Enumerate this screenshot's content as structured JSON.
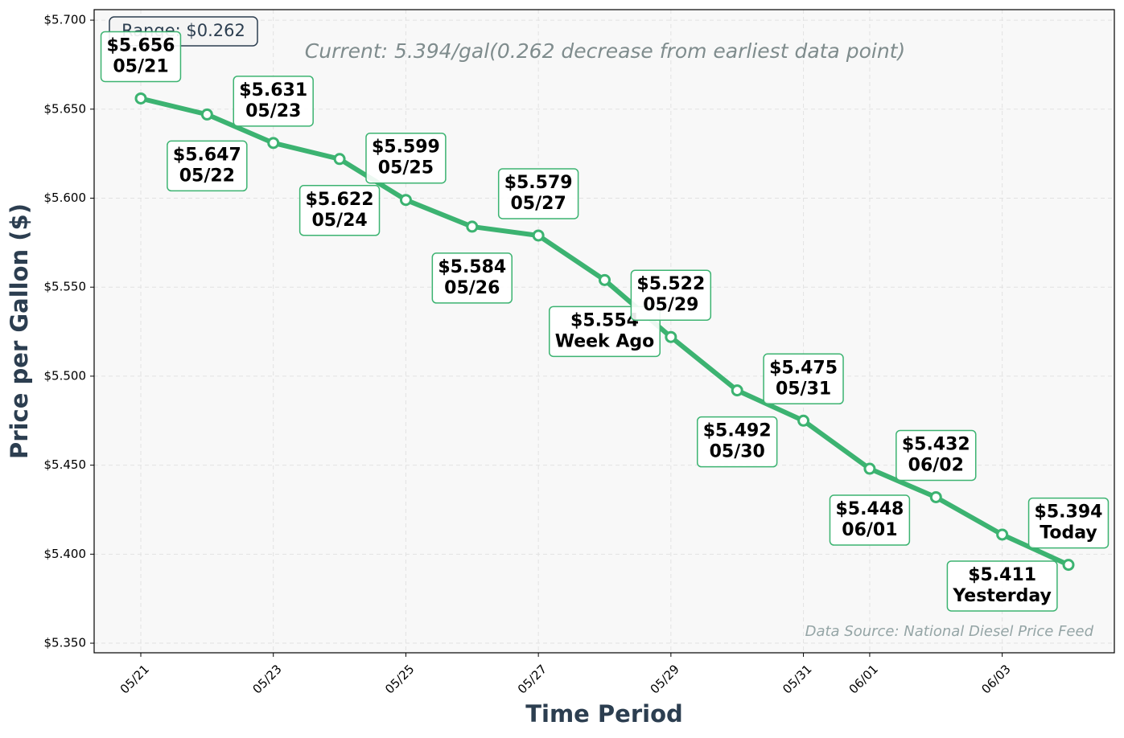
{
  "chart_data": {
    "type": "line",
    "title": "Current: 5.394/gal(0.262 decrease from earliest data point)",
    "annotations": [
      "Range: $0.262",
      "Data Source: National Diesel Price Feed"
    ],
    "x_label": "Time Period",
    "y_label": "Price per Gallon ($)",
    "categories": [
      "05/21",
      null,
      "05/23",
      null,
      "05/25",
      null,
      "05/27",
      null,
      "05/29",
      null,
      "05/31",
      "06/01",
      null,
      "06/03",
      null
    ],
    "values": [
      5.656,
      5.647,
      5.631,
      5.622,
      5.599,
      5.584,
      5.579,
      5.554,
      5.522,
      5.492,
      5.475,
      5.448,
      5.432,
      5.411,
      5.394
    ],
    "value_labels": [
      "$5.656",
      "$5.647",
      "$5.631",
      "$5.622",
      "$5.599",
      "$5.584",
      "$5.579",
      "$5.554",
      "$5.522",
      "$5.492",
      "$5.475",
      "$5.448",
      "$5.432",
      "$5.411",
      "$5.394"
    ],
    "point_labels": [
      "05/21",
      "05/22",
      "05/23",
      "05/24",
      "05/25",
      "05/26",
      "05/27",
      "Week Ago",
      "05/29",
      "05/30",
      "05/31",
      "06/01",
      "06/02",
      "Yesterday",
      "Today"
    ],
    "color": "#3cb371",
    "ylim": [
      5.3446,
      5.7059
    ],
    "yticks": [
      {
        "value": 5.35,
        "label": "$5.350"
      },
      {
        "value": 5.4,
        "label": "$5.400"
      },
      {
        "value": 5.45,
        "label": "$5.450"
      },
      {
        "value": 5.5,
        "label": "$5.500"
      },
      {
        "value": 5.55,
        "label": "$5.550"
      },
      {
        "value": 5.6,
        "label": "$5.600"
      },
      {
        "value": 5.65,
        "label": "$5.650"
      },
      {
        "value": 5.7,
        "label": "$5.700"
      }
    ],
    "grid": true
  }
}
